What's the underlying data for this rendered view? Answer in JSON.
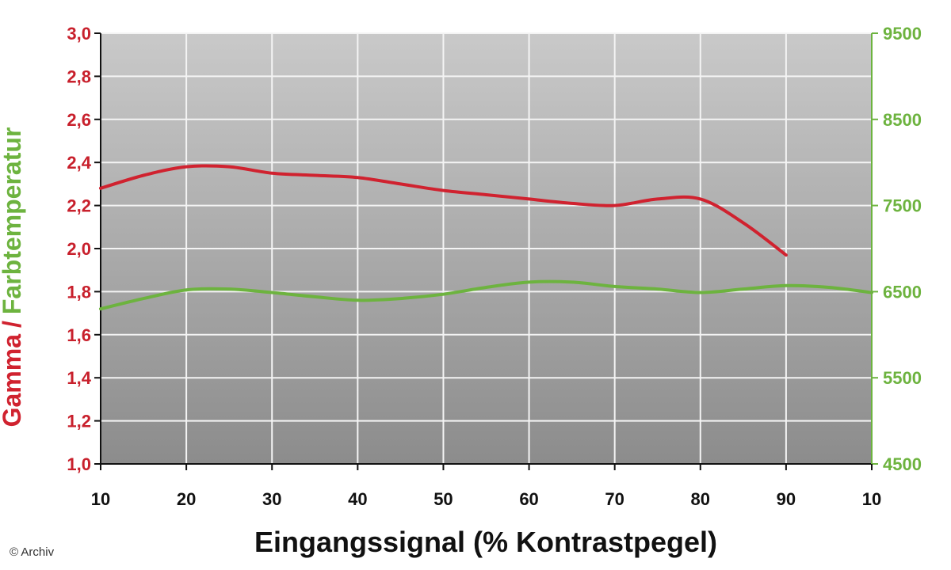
{
  "chart_data": {
    "type": "line",
    "title": "",
    "xlabel": "Eingangssignal (% Kontrastpegel)",
    "ylabel_parts": [
      "Gamma",
      "/",
      "Farbtemperatur"
    ],
    "x_tick_labels": [
      "10",
      "20",
      "30",
      "40",
      "50",
      "60",
      "70",
      "80",
      "90",
      "10"
    ],
    "y_left": {
      "lim": [
        1.0,
        3.0
      ],
      "ticks": [
        "1,0",
        "1,2",
        "1,4",
        "1,6",
        "1,8",
        "2,0",
        "2,2",
        "2,4",
        "2,6",
        "2,8",
        "3,0"
      ]
    },
    "y_right": {
      "lim": [
        4500,
        9500
      ],
      "ticks": [
        "4500",
        "5500",
        "6500",
        "7500",
        "8500",
        "9500"
      ]
    },
    "grid": true,
    "series": [
      {
        "name": "Gamma",
        "axis": "left",
        "color": "#d0222f",
        "x": [
          10,
          15,
          20,
          25,
          30,
          35,
          40,
          45,
          50,
          55,
          60,
          65,
          70,
          75,
          80,
          85,
          90
        ],
        "y": [
          2.28,
          2.34,
          2.38,
          2.38,
          2.35,
          2.34,
          2.33,
          2.3,
          2.27,
          2.25,
          2.23,
          2.21,
          2.2,
          2.23,
          2.23,
          2.12,
          1.97
        ]
      },
      {
        "name": "Farbtemperatur",
        "axis": "right",
        "color": "#6db33f",
        "x": [
          10,
          15,
          20,
          25,
          30,
          35,
          40,
          45,
          50,
          55,
          60,
          65,
          70,
          75,
          80,
          85,
          90,
          95,
          100
        ],
        "y": [
          6300,
          6420,
          6520,
          6530,
          6490,
          6440,
          6400,
          6420,
          6470,
          6550,
          6610,
          6610,
          6560,
          6530,
          6490,
          6530,
          6570,
          6550,
          6490
        ]
      }
    ]
  },
  "credit": "© Archiv"
}
